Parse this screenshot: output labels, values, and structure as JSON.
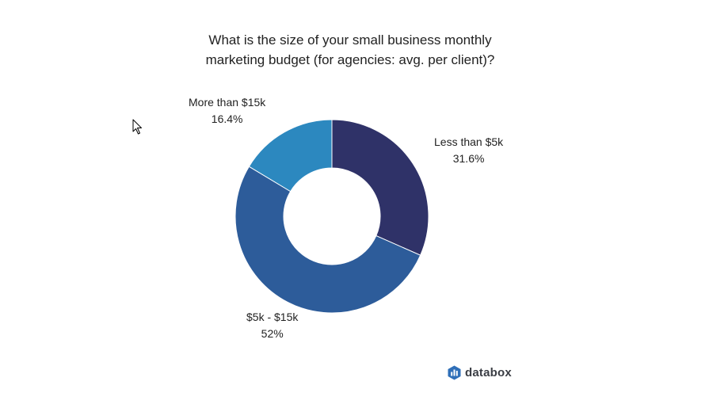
{
  "title": {
    "line1": "What is the size of your small business monthly",
    "line2": "marketing budget (for agencies: avg. per client)?"
  },
  "brand": {
    "name": "databox",
    "icon": "databox-logo-icon"
  },
  "cursor": {
    "icon": "mouse-pointer-icon"
  },
  "colors": {
    "less_than_5k": "#2f3268",
    "5k_15k": "#2d5c9a",
    "more_than_15k": "#2c88bf"
  },
  "chart_data": {
    "type": "pie",
    "donut": true,
    "slices": [
      {
        "label": "Less than $5k",
        "value": 31.6,
        "display": "31.6%",
        "color": "#2f3268"
      },
      {
        "label": "$5k - $15k",
        "value": 52,
        "display": "52%",
        "color": "#2d5c9a"
      },
      {
        "label": "More than $15k",
        "value": 16.4,
        "display": "16.4%",
        "color": "#2c88bf"
      }
    ],
    "title": "What is the size of your small business monthly marketing budget (for agencies: avg. per client)?",
    "legend": "none"
  }
}
